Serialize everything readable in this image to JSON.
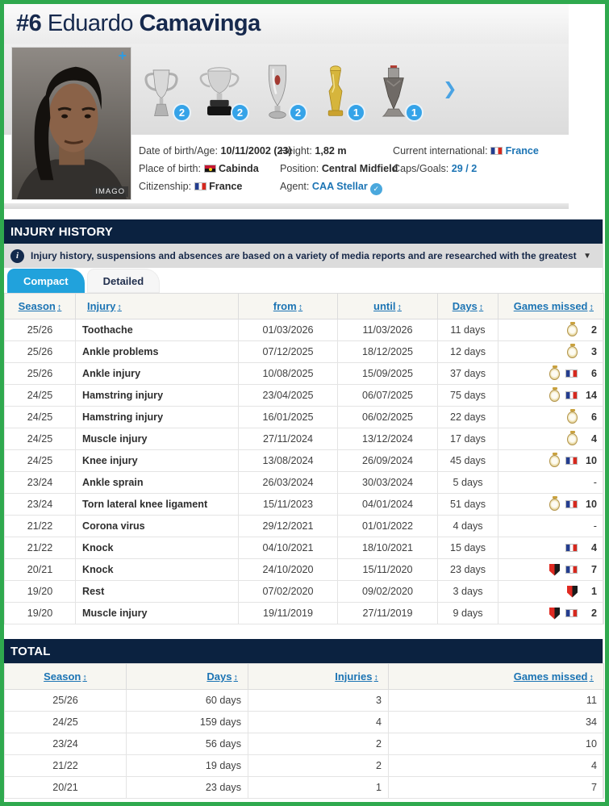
{
  "player": {
    "number": "#6",
    "first_name": "Eduardo",
    "last_name": "Camavinga",
    "photo_watermark": "IMAGO",
    "trophies": [
      {
        "name": "champions-league-trophy",
        "count": "2"
      },
      {
        "name": "laliga-trophy",
        "count": "2"
      },
      {
        "name": "uefa-super-cup-trophy",
        "count": "2"
      },
      {
        "name": "club-world-cup-trophy",
        "count": "1"
      },
      {
        "name": "nations-league-trophy",
        "count": "1"
      }
    ],
    "facts": {
      "dob_label": "Date of birth/Age:",
      "dob_value": "10/11/2002 (23)",
      "pob_label": "Place of birth:",
      "pob_value": "Cabinda",
      "citizenship_label": "Citizenship:",
      "citizenship_value": "France",
      "height_label": "Height:",
      "height_value": "1,82 m",
      "position_label": "Position:",
      "position_value": "Central Midfield",
      "agent_label": "Agent:",
      "agent_value": "CAA Stellar",
      "international_label": "Current international:",
      "international_value": "France",
      "caps_label": "Caps/Goals:",
      "caps_value": "29 / 2"
    }
  },
  "icons": {
    "sort": "↕",
    "caret": "▼",
    "chevron": "❯",
    "plus": "+",
    "info": "i",
    "verified": "✓"
  },
  "sections": {
    "injury": "INJURY HISTORY",
    "total": "TOTAL"
  },
  "infobar": {
    "text": "Injury history, suspensions and absences are based on a variety of media reports and are researched with the greatest of care. If you should n..."
  },
  "tabs": {
    "compact": "Compact",
    "detailed": "Detailed"
  },
  "injury_table": {
    "headers": {
      "season": "Season",
      "injury": "Injury",
      "from": "from",
      "until": "until",
      "days": "Days",
      "games": "Games missed"
    },
    "rows": [
      {
        "season": "25/26",
        "injury": "Toothache",
        "from": "01/03/2026",
        "until": "11/03/2026",
        "days": "11 days",
        "clubs": [
          "real-madrid"
        ],
        "games": "2"
      },
      {
        "season": "25/26",
        "injury": "Ankle problems",
        "from": "07/12/2025",
        "until": "18/12/2025",
        "days": "12 days",
        "clubs": [
          "real-madrid"
        ],
        "games": "3"
      },
      {
        "season": "25/26",
        "injury": "Ankle injury",
        "from": "10/08/2025",
        "until": "15/09/2025",
        "days": "37 days",
        "clubs": [
          "real-madrid",
          "france"
        ],
        "games": "6"
      },
      {
        "season": "24/25",
        "injury": "Hamstring injury",
        "from": "23/04/2025",
        "until": "06/07/2025",
        "days": "75 days",
        "clubs": [
          "real-madrid",
          "france"
        ],
        "games": "14"
      },
      {
        "season": "24/25",
        "injury": "Hamstring injury",
        "from": "16/01/2025",
        "until": "06/02/2025",
        "days": "22 days",
        "clubs": [
          "real-madrid"
        ],
        "games": "6"
      },
      {
        "season": "24/25",
        "injury": "Muscle injury",
        "from": "27/11/2024",
        "until": "13/12/2024",
        "days": "17 days",
        "clubs": [
          "real-madrid"
        ],
        "games": "4"
      },
      {
        "season": "24/25",
        "injury": "Knee injury",
        "from": "13/08/2024",
        "until": "26/09/2024",
        "days": "45 days",
        "clubs": [
          "real-madrid",
          "france"
        ],
        "games": "10"
      },
      {
        "season": "23/24",
        "injury": "Ankle sprain",
        "from": "26/03/2024",
        "until": "30/03/2024",
        "days": "5 days",
        "clubs": [],
        "games": "-"
      },
      {
        "season": "23/24",
        "injury": "Torn lateral knee ligament",
        "from": "15/11/2023",
        "until": "04/01/2024",
        "days": "51 days",
        "clubs": [
          "real-madrid",
          "france"
        ],
        "games": "10"
      },
      {
        "season": "21/22",
        "injury": "Corona virus",
        "from": "29/12/2021",
        "until": "01/01/2022",
        "days": "4 days",
        "clubs": [],
        "games": "-"
      },
      {
        "season": "21/22",
        "injury": "Knock",
        "from": "04/10/2021",
        "until": "18/10/2021",
        "days": "15 days",
        "clubs": [
          "france"
        ],
        "games": "4"
      },
      {
        "season": "20/21",
        "injury": "Knock",
        "from": "24/10/2020",
        "until": "15/11/2020",
        "days": "23 days",
        "clubs": [
          "rennes",
          "france"
        ],
        "games": "7"
      },
      {
        "season": "19/20",
        "injury": "Rest",
        "from": "07/02/2020",
        "until": "09/02/2020",
        "days": "3 days",
        "clubs": [
          "rennes"
        ],
        "games": "1"
      },
      {
        "season": "19/20",
        "injury": "Muscle injury",
        "from": "19/11/2019",
        "until": "27/11/2019",
        "days": "9 days",
        "clubs": [
          "rennes",
          "france"
        ],
        "games": "2"
      }
    ]
  },
  "total_table": {
    "headers": {
      "season": "Season",
      "days": "Days",
      "injuries": "Injuries",
      "games": "Games missed"
    },
    "rows": [
      {
        "season": "25/26",
        "days": "60 days",
        "injuries": "3",
        "games": "11"
      },
      {
        "season": "24/25",
        "days": "159 days",
        "injuries": "4",
        "games": "34"
      },
      {
        "season": "23/24",
        "days": "56 days",
        "injuries": "2",
        "games": "10"
      },
      {
        "season": "21/22",
        "days": "19 days",
        "injuries": "2",
        "games": "4"
      },
      {
        "season": "20/21",
        "days": "23 days",
        "injuries": "1",
        "games": "7"
      }
    ]
  }
}
